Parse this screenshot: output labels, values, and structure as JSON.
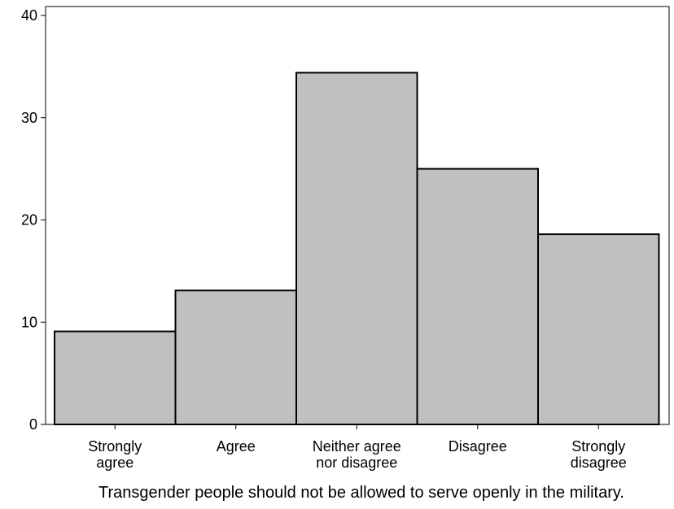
{
  "chart_data": {
    "type": "bar",
    "categories": [
      [
        "Strongly",
        "agree"
      ],
      [
        "Agree"
      ],
      [
        "Neither agree",
        "nor disagree"
      ],
      [
        "Disagree"
      ],
      [
        "Strongly",
        "disagree"
      ]
    ],
    "values": [
      9.1,
      13.1,
      34.4,
      25.0,
      18.6
    ],
    "xlabel": "Transgender people should not be allowed to serve openly in the military.",
    "ylabel": "",
    "ylim": [
      0,
      40
    ],
    "yticks": [
      0,
      10,
      20,
      30,
      40
    ],
    "grid": false,
    "bar_color": "#c0c0c0",
    "bar_edge_color": "#000000"
  }
}
